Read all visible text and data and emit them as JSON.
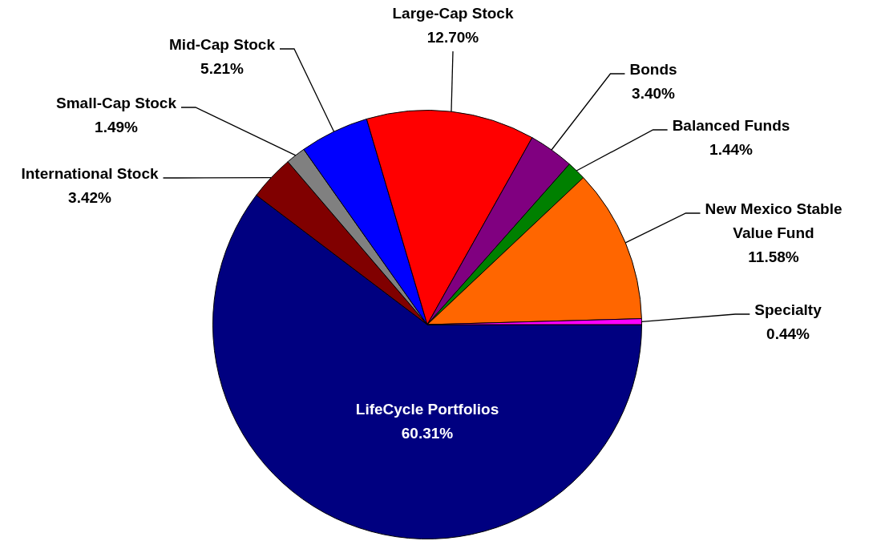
{
  "chart_data": {
    "type": "pie",
    "categories": [
      "LifeCycle Portfolios",
      "International Stock",
      "Small-Cap Stock",
      "Mid-Cap Stock",
      "Large-Cap Stock",
      "Bonds",
      "Balanced Funds",
      "New Mexico Stable Value Fund",
      "Specialty"
    ],
    "values": [
      60.31,
      3.42,
      1.49,
      5.21,
      12.7,
      3.4,
      1.44,
      11.58,
      0.44
    ],
    "value_labels": [
      "60.31%",
      "3.42%",
      "1.49%",
      "5.21%",
      "12.70%",
      "3.40%",
      "1.44%",
      "11.58%",
      "0.44%"
    ],
    "colors": [
      "#000080",
      "#800000",
      "#808080",
      "#0000ff",
      "#ff0000",
      "#800080",
      "#008000",
      "#ff6600",
      "#ff00ff"
    ],
    "legend": false
  }
}
